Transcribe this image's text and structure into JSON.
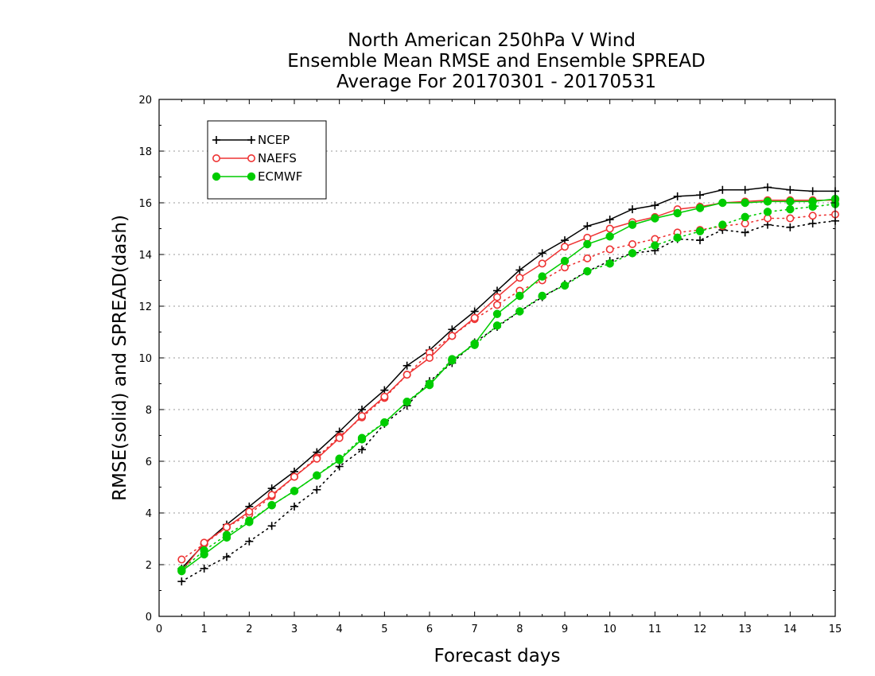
{
  "chart_data": {
    "type": "line",
    "title": [
      "North American 250hPa V Wind",
      "Ensemble Mean RMSE and Ensemble SPREAD",
      "Average For 20170301 - 20170531"
    ],
    "xlabel": "Forecast days",
    "ylabel": "RMSE(solid) and SPREAD(dash)",
    "xlim": [
      0,
      15
    ],
    "ylim": [
      0,
      20
    ],
    "xticks": [
      0,
      1,
      2,
      3,
      4,
      5,
      6,
      7,
      8,
      9,
      10,
      11,
      12,
      13,
      14,
      15
    ],
    "yticks": [
      0,
      2,
      4,
      6,
      8,
      10,
      12,
      14,
      16,
      18,
      20
    ],
    "grid": "horizontal dotted",
    "legend_position": "top-left",
    "x": [
      0.5,
      1,
      1.5,
      2,
      2.5,
      3,
      3.5,
      4,
      4.5,
      5,
      5.5,
      6,
      6.5,
      7,
      7.5,
      8,
      8.5,
      9,
      9.5,
      10,
      10.5,
      11,
      11.5,
      12,
      12.5,
      13,
      13.5,
      14,
      14.5,
      15
    ],
    "series": [
      {
        "name": "NCEP",
        "color": "#000000",
        "marker": "plus",
        "rmse": [
          1.85,
          2.8,
          3.55,
          4.25,
          4.95,
          5.6,
          6.35,
          7.15,
          8.0,
          8.75,
          9.7,
          10.3,
          11.1,
          11.8,
          12.6,
          13.4,
          14.05,
          14.55,
          15.1,
          15.35,
          15.75,
          15.9,
          16.25,
          16.3,
          16.5,
          16.5,
          16.6,
          16.5,
          16.45,
          16.45
        ],
        "spread": [
          1.35,
          1.85,
          2.3,
          2.9,
          3.5,
          4.25,
          4.9,
          5.8,
          6.45,
          7.45,
          8.15,
          9.1,
          9.8,
          10.6,
          11.2,
          11.8,
          12.35,
          12.85,
          13.35,
          13.75,
          14.05,
          14.15,
          14.6,
          14.55,
          14.95,
          14.85,
          15.15,
          15.05,
          15.2,
          15.3
        ]
      },
      {
        "name": "NAEFS",
        "color": "#ee3333",
        "marker": "open-circle",
        "rmse": [
          1.75,
          2.85,
          3.45,
          4.05,
          4.7,
          5.4,
          6.1,
          6.9,
          7.75,
          8.5,
          9.35,
          10.0,
          10.85,
          11.55,
          12.35,
          13.1,
          13.65,
          14.3,
          14.65,
          15.0,
          15.25,
          15.45,
          15.75,
          15.85,
          16.0,
          16.05,
          16.1,
          16.1,
          16.1,
          16.1
        ],
        "spread": [
          2.2,
          2.8,
          3.45,
          3.95,
          4.65,
          5.4,
          6.15,
          6.95,
          7.7,
          8.45,
          9.35,
          10.2,
          10.85,
          11.5,
          12.05,
          12.6,
          13.0,
          13.5,
          13.85,
          14.2,
          14.4,
          14.6,
          14.85,
          14.95,
          15.1,
          15.2,
          15.4,
          15.4,
          15.5,
          15.55
        ]
      },
      {
        "name": "ECMWF",
        "color": "#00cc00",
        "marker": "filled-circle",
        "rmse": [
          1.75,
          2.4,
          3.05,
          3.65,
          4.3,
          4.85,
          5.45,
          6.05,
          6.85,
          7.5,
          8.3,
          8.95,
          9.9,
          10.55,
          11.7,
          12.4,
          13.15,
          13.75,
          14.4,
          14.7,
          15.15,
          15.4,
          15.6,
          15.8,
          16.0,
          16.0,
          16.05,
          16.05,
          16.05,
          16.15
        ],
        "spread": [
          1.8,
          2.55,
          3.15,
          3.7,
          4.3,
          4.85,
          5.45,
          6.1,
          6.9,
          7.5,
          8.3,
          9.0,
          9.95,
          10.5,
          11.25,
          11.8,
          12.4,
          12.8,
          13.35,
          13.65,
          14.05,
          14.35,
          14.65,
          14.9,
          15.15,
          15.45,
          15.65,
          15.75,
          15.85,
          15.95
        ]
      }
    ]
  }
}
